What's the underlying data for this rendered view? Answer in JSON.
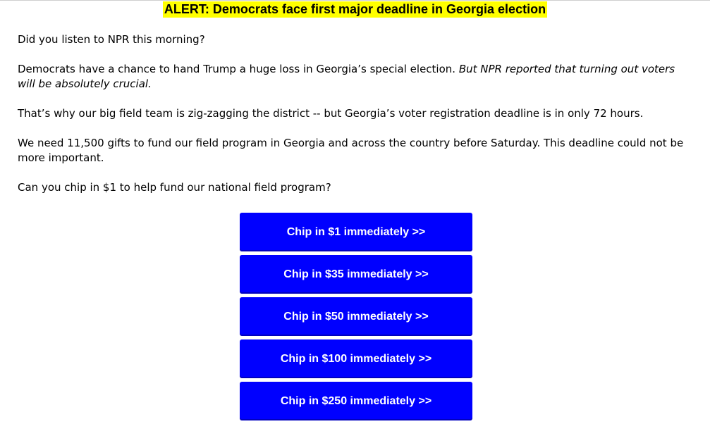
{
  "headline": "ALERT: Democrats face first major deadline in Georgia election",
  "paragraphs": {
    "p1": "Did you listen to NPR this morning?",
    "p2_plain": "Democrats have a chance to hand Trump a huge loss in Georgia’s special election. ",
    "p2_italic": "But NPR reported that turning out voters will be absolutely crucial.",
    "p3": "That’s why our big field team is zig-zagging the district -- but Georgia’s voter registration deadline is in only 72 hours.",
    "p4": "We need 11,500 gifts to fund our field program in Georgia and across the country before Saturday. This deadline could not be more important.",
    "p5": "Can you chip in $1 to help fund our national field program?"
  },
  "buttons": [
    {
      "label": "Chip in $1 immediately >>"
    },
    {
      "label": "Chip in $35 immediately >>"
    },
    {
      "label": "Chip in $50 immediately >>"
    },
    {
      "label": "Chip in $100 immediately >>"
    },
    {
      "label": "Chip in $250 immediately >>"
    }
  ],
  "colors": {
    "headline_highlight": "#ffff00",
    "button_background": "#0000ff",
    "button_text": "#ffffff"
  }
}
